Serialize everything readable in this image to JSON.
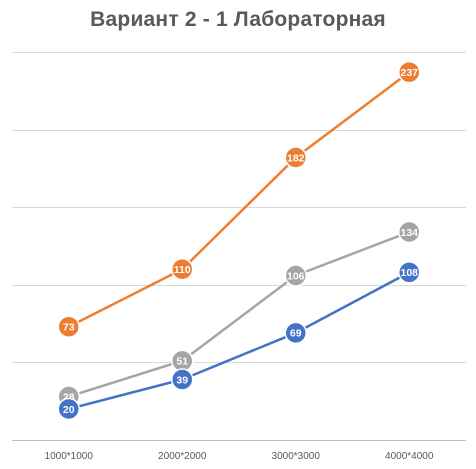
{
  "chart_data": {
    "type": "line",
    "title": "Вариант 2 - 1 Лабораторная",
    "categories": [
      "1000*1000",
      "2000*2000",
      "3000*3000",
      "4000*4000"
    ],
    "series": [
      {
        "values": [
          73,
          110,
          182,
          237
        ],
        "color": "#ED7D31"
      },
      {
        "values": [
          28,
          51,
          106,
          134
        ],
        "color": "#A5A5A5"
      },
      {
        "values": [
          20,
          39,
          69,
          108
        ],
        "color": "#4472C4"
      }
    ],
    "ylim": [
      0,
      250
    ],
    "grid": true,
    "legend": "none",
    "xlabel": "",
    "ylabel": ""
  }
}
